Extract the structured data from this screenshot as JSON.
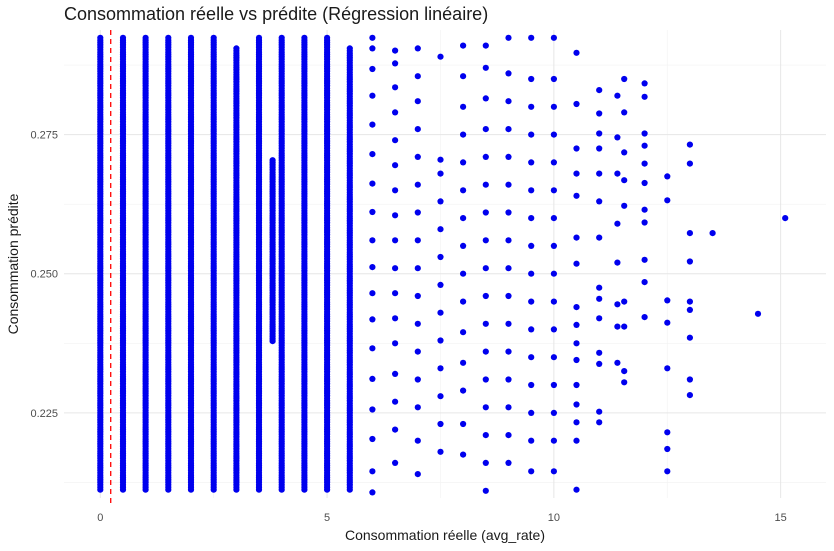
{
  "chart_data": {
    "type": "scatter",
    "title": "Consommation réelle vs prédite (Régression linéaire)",
    "xlabel": "Consommation réelle (avg_rate)",
    "ylabel": "Consommation prédite",
    "xlim": [
      -0.8,
      16.0
    ],
    "ylim": [
      0.2097,
      0.2938
    ],
    "x_ticks": [
      0,
      5,
      10,
      15
    ],
    "x_tick_labels": [
      "0",
      "5",
      "10",
      "15"
    ],
    "y_ticks": [
      0.225,
      0.25,
      0.275
    ],
    "y_tick_labels": [
      "0.225",
      "0.250",
      "0.275"
    ],
    "grid": true,
    "point_color": "#0000ee",
    "reference_line": {
      "x": 0.23,
      "color": "#ff0000",
      "style": "dashed"
    },
    "dense_columns": [
      {
        "x": 0.0,
        "y": [
          0.2112,
          0.2924
        ]
      },
      {
        "x": 0.5,
        "y": [
          0.2112,
          0.2924
        ]
      },
      {
        "x": 1.0,
        "y": [
          0.2112,
          0.2924
        ]
      },
      {
        "x": 1.5,
        "y": [
          0.2112,
          0.2924
        ]
      },
      {
        "x": 2.0,
        "y": [
          0.2112,
          0.2924
        ]
      },
      {
        "x": 2.5,
        "y": [
          0.2112,
          0.2924
        ]
      },
      {
        "x": 3.0,
        "y": [
          0.2112,
          0.2905
        ]
      },
      {
        "x": 3.5,
        "y": [
          0.2112,
          0.2924
        ]
      },
      {
        "x": 3.8,
        "y": [
          0.2379,
          0.2704
        ]
      },
      {
        "x": 4.0,
        "y": [
          0.2112,
          0.2924
        ]
      },
      {
        "x": 4.5,
        "y": [
          0.2112,
          0.2924
        ]
      },
      {
        "x": 5.0,
        "y": [
          0.2112,
          0.2924
        ]
      },
      {
        "x": 5.5,
        "y": [
          0.2112,
          0.2905
        ]
      }
    ],
    "sparse_columns": [
      {
        "x": 6.0,
        "y": [
          0.2107,
          0.2145,
          0.2203,
          0.2256,
          0.2311,
          0.2366,
          0.2418,
          0.2465,
          0.2512,
          0.256,
          0.2611,
          0.2662,
          0.2715,
          0.2768,
          0.282,
          0.2868,
          0.2905,
          0.2924
        ]
      },
      {
        "x": 6.5,
        "y": [
          0.216,
          0.222,
          0.227,
          0.232,
          0.2375,
          0.242,
          0.2465,
          0.251,
          0.256,
          0.2605,
          0.265,
          0.2695,
          0.274,
          0.279,
          0.2835,
          0.2878,
          0.2901
        ]
      },
      {
        "x": 7.0,
        "y": [
          0.214,
          0.22,
          0.226,
          0.231,
          0.236,
          0.241,
          0.246,
          0.251,
          0.256,
          0.261,
          0.266,
          0.271,
          0.276,
          0.281,
          0.2855,
          0.2905
        ]
      },
      {
        "x": 7.5,
        "y": [
          0.218,
          0.223,
          0.228,
          0.233,
          0.238,
          0.243,
          0.248,
          0.253,
          0.258,
          0.263,
          0.268,
          0.2705,
          0.289
        ]
      },
      {
        "x": 8.0,
        "y": [
          0.2175,
          0.223,
          0.229,
          0.234,
          0.2395,
          0.245,
          0.25,
          0.255,
          0.26,
          0.265,
          0.27,
          0.275,
          0.28,
          0.2855,
          0.291
        ]
      },
      {
        "x": 8.5,
        "y": [
          0.211,
          0.216,
          0.221,
          0.226,
          0.231,
          0.236,
          0.241,
          0.246,
          0.251,
          0.256,
          0.261,
          0.266,
          0.271,
          0.276,
          0.2815,
          0.287,
          0.291
        ]
      },
      {
        "x": 9.0,
        "y": [
          0.216,
          0.221,
          0.226,
          0.231,
          0.236,
          0.241,
          0.246,
          0.251,
          0.256,
          0.261,
          0.266,
          0.271,
          0.276,
          0.281,
          0.286,
          0.2924
        ]
      },
      {
        "x": 9.5,
        "y": [
          0.2145,
          0.22,
          0.225,
          0.23,
          0.235,
          0.24,
          0.245,
          0.25,
          0.255,
          0.26,
          0.265,
          0.27,
          0.275,
          0.28,
          0.285,
          0.2924
        ]
      },
      {
        "x": 10.0,
        "y": [
          0.2145,
          0.22,
          0.225,
          0.23,
          0.235,
          0.24,
          0.245,
          0.25,
          0.255,
          0.26,
          0.265,
          0.27,
          0.275,
          0.28,
          0.285,
          0.2924
        ]
      }
    ],
    "points": [
      {
        "x": 10.5,
        "y": 0.2897
      },
      {
        "x": 10.5,
        "y": 0.2805
      },
      {
        "x": 10.5,
        "y": 0.2725
      },
      {
        "x": 10.5,
        "y": 0.268
      },
      {
        "x": 10.5,
        "y": 0.264
      },
      {
        "x": 10.5,
        "y": 0.2565
      },
      {
        "x": 10.5,
        "y": 0.2518
      },
      {
        "x": 10.5,
        "y": 0.244
      },
      {
        "x": 10.5,
        "y": 0.2408
      },
      {
        "x": 10.5,
        "y": 0.2375
      },
      {
        "x": 10.5,
        "y": 0.2345
      },
      {
        "x": 10.5,
        "y": 0.23
      },
      {
        "x": 10.5,
        "y": 0.2265
      },
      {
        "x": 10.5,
        "y": 0.2233
      },
      {
        "x": 10.5,
        "y": 0.22
      },
      {
        "x": 10.5,
        "y": 0.2112
      },
      {
        "x": 11.0,
        "y": 0.283
      },
      {
        "x": 11.0,
        "y": 0.2788
      },
      {
        "x": 11.0,
        "y": 0.2752
      },
      {
        "x": 11.0,
        "y": 0.2725
      },
      {
        "x": 11.0,
        "y": 0.268
      },
      {
        "x": 11.0,
        "y": 0.263
      },
      {
        "x": 11.0,
        "y": 0.2565
      },
      {
        "x": 11.0,
        "y": 0.2475
      },
      {
        "x": 11.0,
        "y": 0.2455
      },
      {
        "x": 11.0,
        "y": 0.242
      },
      {
        "x": 11.0,
        "y": 0.2358
      },
      {
        "x": 11.0,
        "y": 0.2338
      },
      {
        "x": 11.0,
        "y": 0.2252
      },
      {
        "x": 11.0,
        "y": 0.2233
      },
      {
        "x": 11.4,
        "y": 0.282
      },
      {
        "x": 11.4,
        "y": 0.2745
      },
      {
        "x": 11.4,
        "y": 0.268
      },
      {
        "x": 11.4,
        "y": 0.259
      },
      {
        "x": 11.4,
        "y": 0.252
      },
      {
        "x": 11.4,
        "y": 0.2445
      },
      {
        "x": 11.4,
        "y": 0.2405
      },
      {
        "x": 11.4,
        "y": 0.234
      },
      {
        "x": 11.55,
        "y": 0.285
      },
      {
        "x": 11.55,
        "y": 0.279
      },
      {
        "x": 11.55,
        "y": 0.2718
      },
      {
        "x": 11.55,
        "y": 0.2668
      },
      {
        "x": 11.55,
        "y": 0.2622
      },
      {
        "x": 11.55,
        "y": 0.245
      },
      {
        "x": 11.55,
        "y": 0.2405
      },
      {
        "x": 11.55,
        "y": 0.2325
      },
      {
        "x": 11.55,
        "y": 0.2305
      },
      {
        "x": 12.0,
        "y": 0.2842
      },
      {
        "x": 12.0,
        "y": 0.2818
      },
      {
        "x": 12.0,
        "y": 0.2752
      },
      {
        "x": 12.0,
        "y": 0.273
      },
      {
        "x": 12.0,
        "y": 0.2698
      },
      {
        "x": 12.0,
        "y": 0.2663
      },
      {
        "x": 12.0,
        "y": 0.2615
      },
      {
        "x": 12.0,
        "y": 0.2592
      },
      {
        "x": 12.0,
        "y": 0.2525
      },
      {
        "x": 12.0,
        "y": 0.2485
      },
      {
        "x": 12.0,
        "y": 0.2422
      },
      {
        "x": 12.5,
        "y": 0.2675
      },
      {
        "x": 12.5,
        "y": 0.2632
      },
      {
        "x": 12.5,
        "y": 0.2452
      },
      {
        "x": 12.5,
        "y": 0.2412
      },
      {
        "x": 12.5,
        "y": 0.233
      },
      {
        "x": 12.5,
        "y": 0.2215
      },
      {
        "x": 12.5,
        "y": 0.2185
      },
      {
        "x": 12.5,
        "y": 0.2145
      },
      {
        "x": 13.0,
        "y": 0.2732
      },
      {
        "x": 13.0,
        "y": 0.2698
      },
      {
        "x": 13.0,
        "y": 0.2573
      },
      {
        "x": 13.0,
        "y": 0.2522
      },
      {
        "x": 13.0,
        "y": 0.245
      },
      {
        "x": 13.0,
        "y": 0.2435
      },
      {
        "x": 13.0,
        "y": 0.2385
      },
      {
        "x": 13.0,
        "y": 0.231
      },
      {
        "x": 13.0,
        "y": 0.2282
      },
      {
        "x": 13.5,
        "y": 0.2573
      },
      {
        "x": 14.5,
        "y": 0.2428
      },
      {
        "x": 15.1,
        "y": 0.26
      }
    ]
  }
}
